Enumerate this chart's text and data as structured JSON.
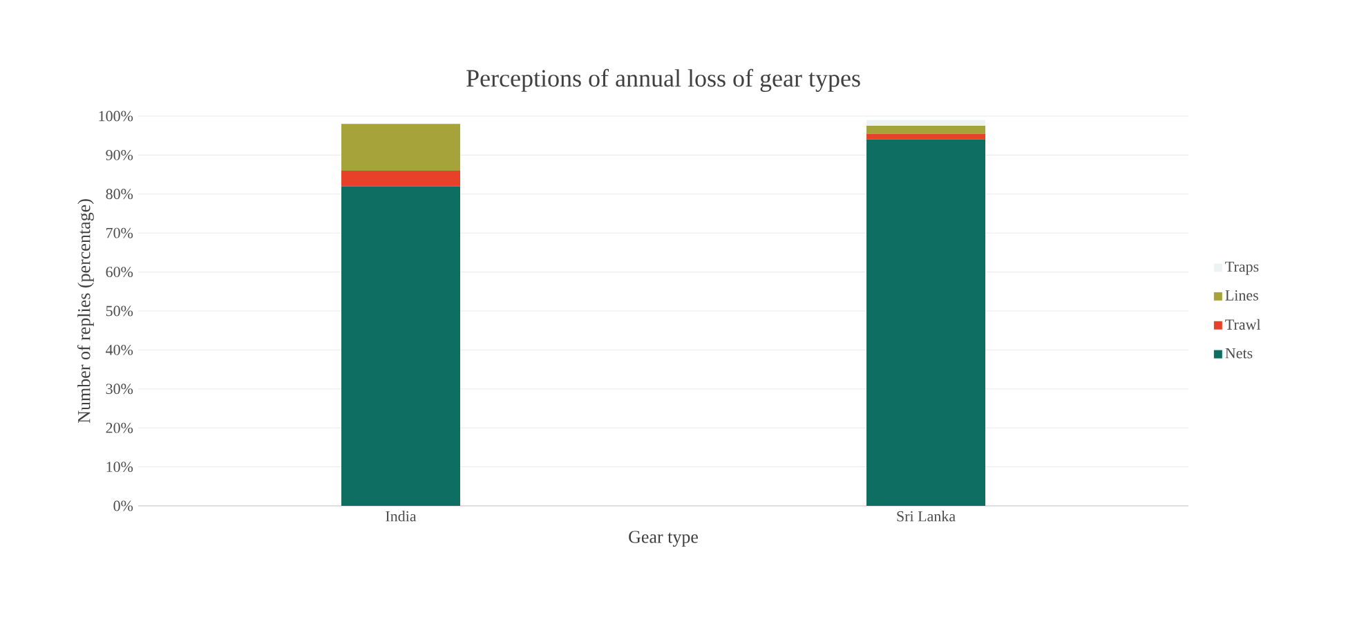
{
  "chart_data": {
    "type": "bar",
    "stacked": true,
    "title": "Perceptions of annual loss of gear types",
    "xlabel": "Gear type",
    "ylabel": "Number of replies (percentage)",
    "categories": [
      "India",
      "Sri Lanka"
    ],
    "series": [
      {
        "name": "Nets",
        "color": "#0e6e62",
        "values": [
          82,
          94
        ]
      },
      {
        "name": "Trawl",
        "color": "#e8412a",
        "values": [
          4,
          1.5
        ]
      },
      {
        "name": "Lines",
        "color": "#a5a33a",
        "values": [
          12,
          2
        ]
      },
      {
        "name": "Traps",
        "color": "#eef2f2",
        "values": [
          0,
          1.5
        ]
      }
    ],
    "ylim": [
      0,
      100
    ],
    "yticks": [
      {
        "value": 0,
        "label": "0%"
      },
      {
        "value": 10,
        "label": "10%"
      },
      {
        "value": 20,
        "label": "20%"
      },
      {
        "value": 30,
        "label": "30%"
      },
      {
        "value": 40,
        "label": "40%"
      },
      {
        "value": 50,
        "label": "50%"
      },
      {
        "value": 60,
        "label": "60%"
      },
      {
        "value": 70,
        "label": "70%"
      },
      {
        "value": 80,
        "label": "80%"
      },
      {
        "value": 90,
        "label": "90%"
      },
      {
        "value": 100,
        "label": "100%"
      }
    ],
    "grid": "y",
    "legend": "right"
  }
}
